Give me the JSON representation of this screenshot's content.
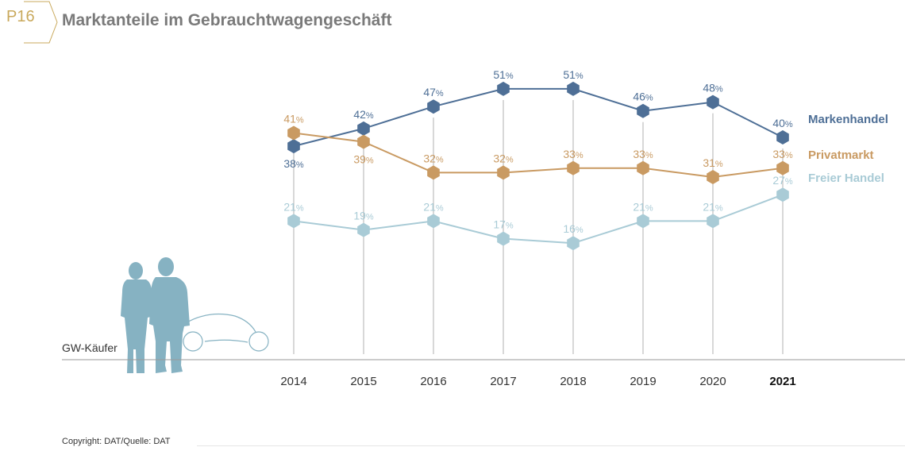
{
  "header": {
    "badge": "P16",
    "title": "Marktanteile im Gebrauchtwagengeschäft"
  },
  "footer": {
    "copyright": "Copyright: DAT/Quelle: DAT"
  },
  "colors": {
    "markenhandel": "#4e6f96",
    "privatmarkt": "#c99a62",
    "freier_handel": "#a9cbd6",
    "axis": "#9a9a9a",
    "gridline": "#b0b0b0",
    "figure": "#86b2c2",
    "badge": "#c9a95c"
  },
  "chart_data": {
    "type": "line",
    "title": "Marktanteile im Gebrauchtwagengeschäft",
    "categories": [
      "2014",
      "2015",
      "2016",
      "2017",
      "2018",
      "2019",
      "2020",
      "2021"
    ],
    "highlight_category": "2021",
    "ylim": [
      0,
      55
    ],
    "unit": "%",
    "axis_label": "GW-Käufer",
    "legend_placement": "right",
    "marker": "hexagon",
    "series": [
      {
        "name": "Markenhandel",
        "key": "markenhandel",
        "values": [
          38,
          42,
          47,
          51,
          51,
          46,
          48,
          40
        ]
      },
      {
        "name": "Privatmarkt",
        "key": "privatmarkt",
        "values": [
          41,
          39,
          32,
          32,
          33,
          33,
          31,
          33
        ]
      },
      {
        "name": "Freier Handel",
        "key": "freier_handel",
        "values": [
          21,
          19,
          21,
          17,
          16,
          21,
          21,
          27
        ]
      }
    ]
  }
}
